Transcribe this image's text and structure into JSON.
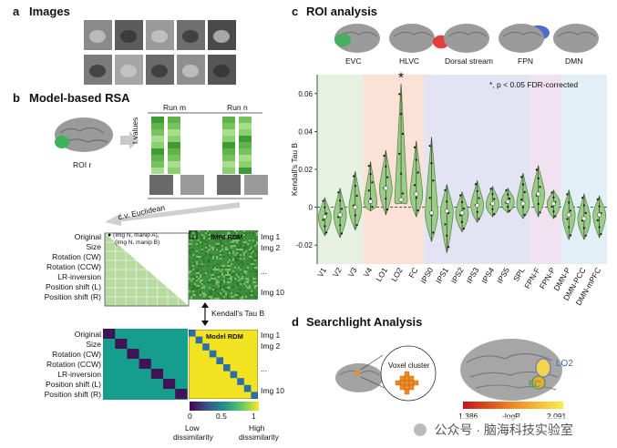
{
  "panel_a": {
    "letter": "a",
    "title": "Images"
  },
  "panel_b": {
    "letter": "b",
    "title": "Model-based RSA",
    "roi_label": "ROI r",
    "run_m": "Run m",
    "run_n": "Run n",
    "t_values": "t values",
    "cv_euclidean": "c.v. Euclidean",
    "legend_text_1": "(Img N, manip A),",
    "legend_text_2": "(Img N, manip B)",
    "fmri_rdm": "fMRI RDM",
    "img1": "Img 1",
    "img2": "Img 2",
    "ellipsis": "...",
    "img10": "Img 10",
    "kendall": "Kendall's Tau B",
    "model_rdm": "Model RDM",
    "rows": [
      "Original",
      "Size",
      "Rotation (CW)",
      "Rotation (CCW)",
      "LR-inversion",
      "Position shift (L)",
      "Position shift (R)"
    ],
    "colorbar_ticks": [
      "0",
      "0.5",
      "1"
    ],
    "low": "Low",
    "dissimilarity_low": "dissimilarity",
    "high": "High",
    "dissimilarity_high": "dissimilarity",
    "colors": {
      "green_matrix": "#a8d08d",
      "teal": "#159e8e",
      "purple": "#3f1456",
      "yellow": "#f1e321",
      "blue_diag": "#2a6fa8"
    }
  },
  "panel_c": {
    "letter": "c",
    "title": "ROI analysis",
    "brains": [
      "EVC",
      "HLVC",
      "Dorsal stream",
      "FPN",
      "DMN"
    ],
    "significance_note": "*, p < 0.05 FDR-corrected",
    "star": "*",
    "chart_data": {
      "type": "violin",
      "ylabel": "Kendall's Tau B",
      "ylim": [
        -0.03,
        0.07
      ],
      "yticks": [
        "-0.02",
        "0",
        "0.02",
        "0.04",
        "0.06"
      ],
      "ytick_values": [
        -0.02,
        0,
        0.02,
        0.04,
        0.06
      ],
      "categories": [
        "V1",
        "V2",
        "V3",
        "V4",
        "LO1",
        "LO2",
        "FC",
        "IPS0",
        "IPS1",
        "IPS2",
        "IPS3",
        "IPS4",
        "IPS5",
        "SPL",
        "FPN-F",
        "FPN-P",
        "DMN-P",
        "DMN-PCC",
        "DMN-mPFC"
      ],
      "medians": [
        -0.005,
        -0.004,
        0.0,
        0.003,
        0.01,
        0.004,
        0.007,
        -0.003,
        -0.002,
        -0.003,
        0.001,
        0.002,
        0.003,
        0.002,
        0.007,
        0.002,
        -0.004,
        -0.006,
        -0.004
      ],
      "mins": [
        -0.015,
        -0.016,
        -0.012,
        -0.002,
        -0.004,
        0.002,
        -0.005,
        -0.018,
        -0.024,
        -0.013,
        -0.008,
        -0.005,
        -0.003,
        -0.006,
        -0.005,
        -0.006,
        -0.017,
        -0.017,
        -0.016
      ],
      "maxs": [
        0.005,
        0.01,
        0.019,
        0.024,
        0.03,
        0.065,
        0.035,
        0.037,
        0.012,
        0.008,
        0.014,
        0.011,
        0.01,
        0.018,
        0.022,
        0.009,
        0.009,
        0.007,
        0.006
      ],
      "groups": [
        {
          "name": "EVC",
          "from": 0,
          "to": 2,
          "color": "#e5f2e1"
        },
        {
          "name": "HLVC",
          "from": 3,
          "to": 6,
          "color": "#fbe1d6"
        },
        {
          "name": "Dorsal stream",
          "from": 7,
          "to": 13,
          "color": "#e3e3f3"
        },
        {
          "name": "FPN",
          "from": 14,
          "to": 15,
          "color": "#f1e2ef"
        },
        {
          "name": "DMN",
          "from": 16,
          "to": 18,
          "color": "#e2eff6"
        }
      ],
      "significant": [
        "LO2"
      ],
      "violin_color": "#9ccc8a"
    }
  },
  "panel_d": {
    "letter": "d",
    "title": "Searchlight Analysis",
    "voxel_cluster": "Voxel cluster",
    "lo2": "LO2",
    "fc": "FC",
    "colorbar_min": "1.386",
    "colorbar_label": "-logP",
    "colorbar_max": "2.091"
  },
  "watermark": "公众号 · 脑海科技实验室"
}
